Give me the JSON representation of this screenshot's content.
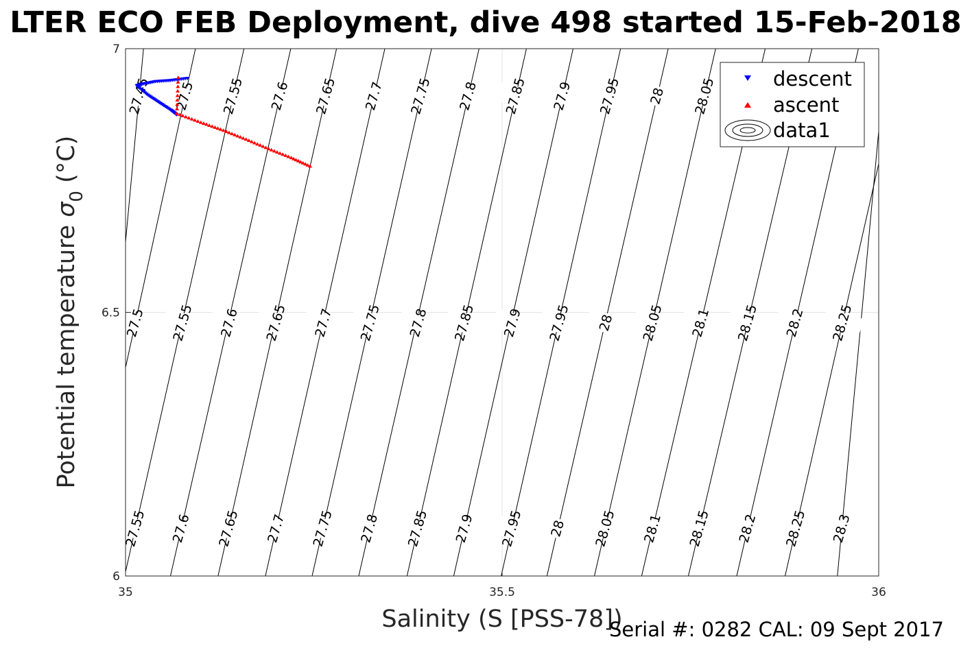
{
  "chart_data": {
    "type": "scatter",
    "title": "LTER ECO FEB Deployment, dive 498 started 15-Feb-2018",
    "xlabel": "Salinity (S [PSS-78])",
    "ylabel_main": "Potential temperature ",
    "ylabel_sigma": "σ",
    "ylabel_sub": "0",
    "ylabel_unit": " (°C)",
    "xlim": [
      35,
      36
    ],
    "ylim": [
      6,
      7
    ],
    "xticks": [
      35,
      35.5,
      36
    ],
    "xtick_labels": [
      "35",
      "35.5",
      "36"
    ],
    "yticks": [
      6,
      6.5,
      7
    ],
    "ytick_labels": [
      "6",
      "6.5",
      "7"
    ],
    "grid": true,
    "legend_position": "top-right",
    "legend": [
      "descent",
      "ascent",
      "data1"
    ],
    "series": [
      {
        "name": "descent",
        "marker": "triangle-down",
        "color": "#0000ff",
        "points": [
          [
            35.082,
            6.944
          ],
          [
            35.06,
            6.94
          ],
          [
            35.04,
            6.938
          ],
          [
            35.022,
            6.933
          ],
          [
            35.015,
            6.93
          ],
          [
            35.03,
            6.912
          ],
          [
            35.045,
            6.898
          ],
          [
            35.06,
            6.884
          ],
          [
            35.068,
            6.875
          ]
        ]
      },
      {
        "name": "ascent",
        "marker": "triangle-up",
        "color": "#ff0000",
        "points": [
          [
            35.07,
            6.945
          ],
          [
            35.068,
            6.877
          ],
          [
            35.1,
            6.86
          ],
          [
            35.13,
            6.845
          ],
          [
            35.16,
            6.828
          ],
          [
            35.19,
            6.81
          ],
          [
            35.22,
            6.793
          ],
          [
            35.245,
            6.777
          ]
        ]
      }
    ],
    "contour_rows": [
      {
        "y": 6.91,
        "labels": [
          {
            "text": "27.45",
            "x": 35.018
          },
          {
            "text": "27.5",
            "x": 35.079
          },
          {
            "text": "27.55",
            "x": 35.143
          },
          {
            "text": "27.6",
            "x": 35.205
          },
          {
            "text": "27.65",
            "x": 35.266
          },
          {
            "text": "27.7",
            "x": 35.33
          },
          {
            "text": "27.75",
            "x": 35.392
          },
          {
            "text": "27.8",
            "x": 35.455
          },
          {
            "text": "27.85",
            "x": 35.518
          },
          {
            "text": "27.9",
            "x": 35.58
          },
          {
            "text": "27.95",
            "x": 35.643
          },
          {
            "text": "28",
            "x": 35.706
          },
          {
            "text": "28.05",
            "x": 35.769
          }
        ]
      },
      {
        "y": 6.48,
        "labels": [
          {
            "text": "27.5",
            "x": 35.013
          },
          {
            "text": "27.55",
            "x": 35.076
          },
          {
            "text": "27.6",
            "x": 35.138
          },
          {
            "text": "27.65",
            "x": 35.2
          },
          {
            "text": "27.7",
            "x": 35.263
          },
          {
            "text": "27.75",
            "x": 35.325
          },
          {
            "text": "27.8",
            "x": 35.389
          },
          {
            "text": "27.85",
            "x": 35.45
          },
          {
            "text": "27.9",
            "x": 35.514
          },
          {
            "text": "27.95",
            "x": 35.576
          },
          {
            "text": "28",
            "x": 35.638
          },
          {
            "text": "28.05",
            "x": 35.7
          },
          {
            "text": "28.1",
            "x": 35.764
          },
          {
            "text": "28.15",
            "x": 35.826
          },
          {
            "text": "28.2",
            "x": 35.889
          },
          {
            "text": "28.25",
            "x": 35.952
          }
        ]
      },
      {
        "y": 6.09,
        "labels": [
          {
            "text": "27.55",
            "x": 35.013
          },
          {
            "text": "27.6",
            "x": 35.074
          },
          {
            "text": "27.65",
            "x": 35.137
          },
          {
            "text": "27.7",
            "x": 35.2
          },
          {
            "text": "27.75",
            "x": 35.262
          },
          {
            "text": "27.8",
            "x": 35.324
          },
          {
            "text": "27.85",
            "x": 35.388
          },
          {
            "text": "27.9",
            "x": 35.45
          },
          {
            "text": "27.95",
            "x": 35.513
          },
          {
            "text": "28",
            "x": 35.574
          },
          {
            "text": "28.05",
            "x": 35.637
          },
          {
            "text": "28.1",
            "x": 35.7
          },
          {
            "text": "28.15",
            "x": 35.762
          },
          {
            "text": "28.2",
            "x": 35.826
          },
          {
            "text": "28.25",
            "x": 35.89
          },
          {
            "text": "28.3",
            "x": 35.951
          }
        ]
      }
    ]
  },
  "footer": {
    "serial": "Serial #: 0282  CAL: 09 Sept 2017"
  }
}
